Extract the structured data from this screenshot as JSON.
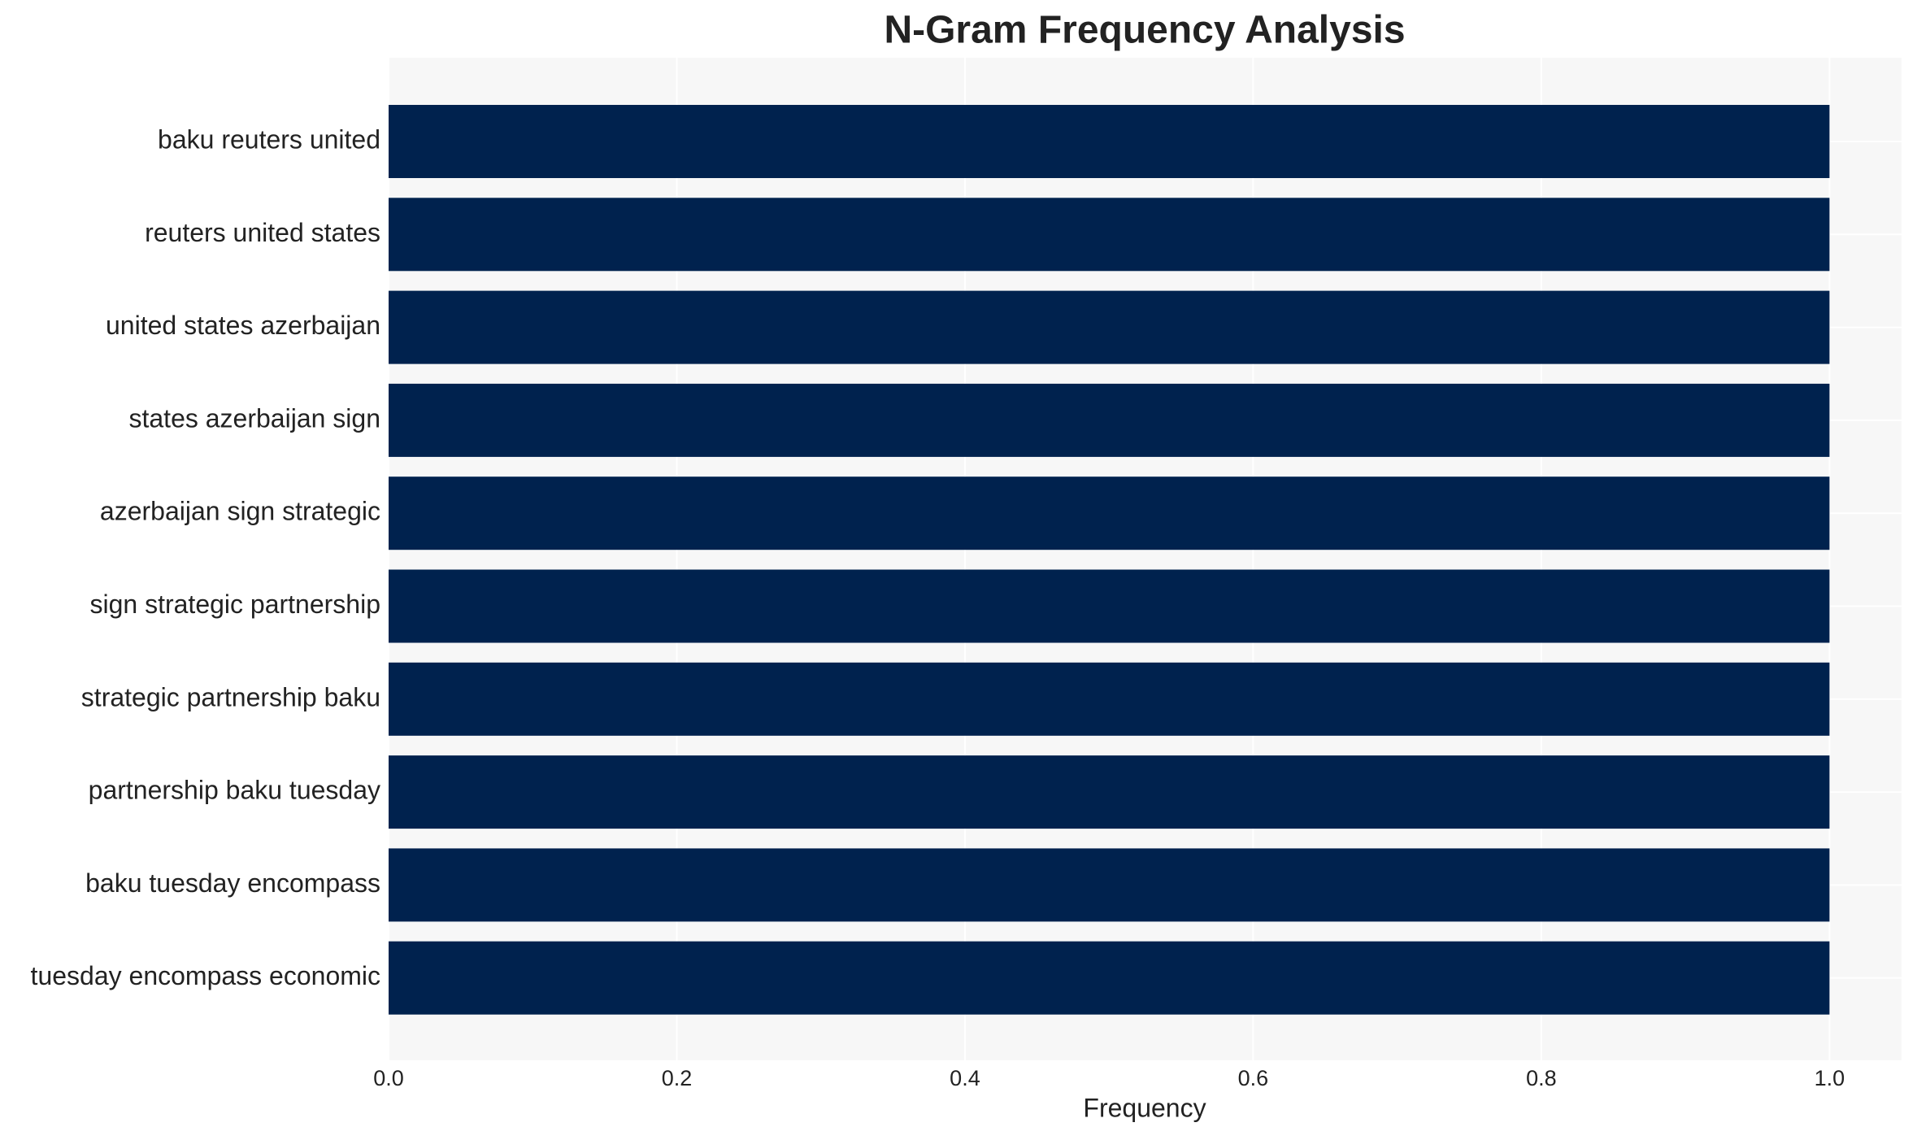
{
  "chart_data": {
    "type": "barh",
    "title": "N-Gram Frequency Analysis",
    "x_label": "Frequency",
    "categories": [
      "baku reuters united",
      "reuters united states",
      "united states azerbaijan",
      "states azerbaijan sign",
      "azerbaijan sign strategic",
      "sign strategic partnership",
      "strategic partnership baku",
      "partnership baku tuesday",
      "baku tuesday encompass",
      "tuesday encompass economic"
    ],
    "values": [
      1,
      1,
      1,
      1,
      1,
      1,
      1,
      1,
      1,
      1
    ],
    "color": "#00224e",
    "xlim": [
      0,
      1.05
    ],
    "xticks": [
      {
        "value": 0,
        "label": "0.0"
      },
      0.2,
      0.4,
      0.6,
      0.8,
      {
        "value": 1,
        "label": "1.0"
      }
    ],
    "grid": true
  }
}
